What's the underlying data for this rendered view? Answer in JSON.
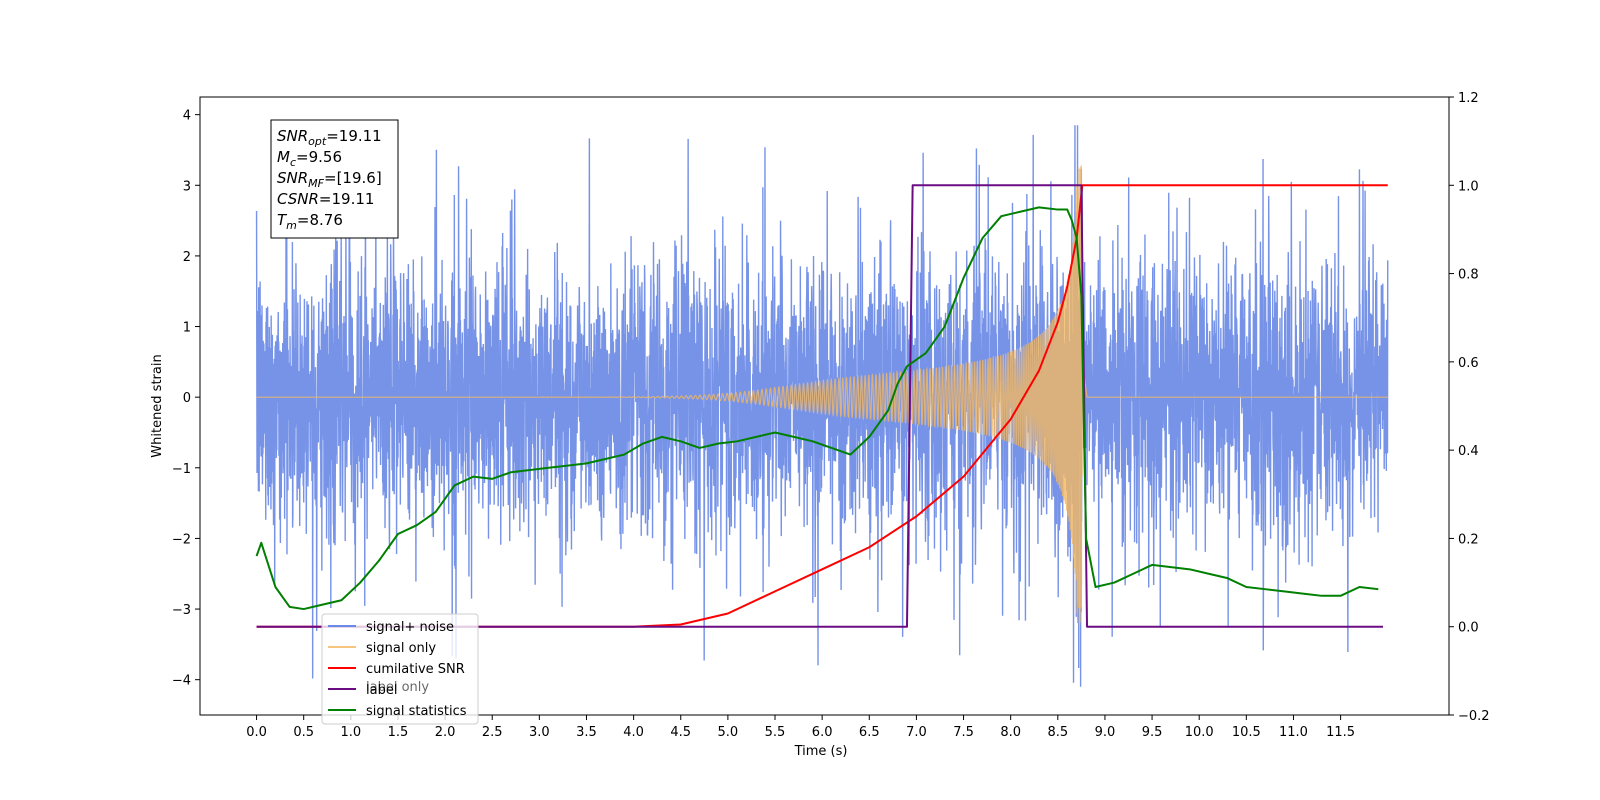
{
  "chart_data": {
    "type": "line",
    "xlabel": "Time (s)",
    "ylabel_left": "Whitened strain",
    "ylabel_right": "",
    "xlim": [
      -0.6,
      12.65
    ],
    "ylim_left": [
      -4.5,
      4.25
    ],
    "ylim_right": [
      -0.2,
      1.2
    ],
    "x_ticks": [
      "0.0",
      "0.5",
      "1.0",
      "1.5",
      "2.0",
      "2.5",
      "3.0",
      "3.5",
      "4.0",
      "4.5",
      "5.0",
      "5.5",
      "6.0",
      "6.5",
      "7.0",
      "7.5",
      "8.0",
      "8.5",
      "9.0",
      "9.5",
      "10.0",
      "10.5",
      "11.0",
      "11.5"
    ],
    "y_ticks_left": [
      "4",
      "3",
      "2",
      "1",
      "0",
      "−1",
      "−2",
      "−3",
      "−4"
    ],
    "y_ticks_right": [
      "1.2",
      "1.0",
      "0.8",
      "0.6",
      "0.4",
      "0.2",
      "0.0",
      "−0.2"
    ],
    "grid": false,
    "legend_position": "lower-left",
    "annotation_box": {
      "lines": [
        {
          "sym": "SNR",
          "sub": "opt",
          "val": "=19.11"
        },
        {
          "sym": "M",
          "sub": "c",
          "val": "=9.56"
        },
        {
          "sym": "SNR",
          "sub": "MF",
          "val": "=[19.6]"
        },
        {
          "sym": "CSNR",
          "sub": "",
          "val": "=19.11"
        },
        {
          "sym": "T",
          "sub": "m",
          "val": "=8.76"
        }
      ]
    },
    "series": [
      {
        "name": "signal+ noise",
        "axis": "left",
        "color": "#6a8ae6",
        "style": "noise",
        "x_start": 0.0,
        "x_end": 12.0,
        "sigma": 1.0,
        "spike_max": 3.85,
        "spike_min": -4.1
      },
      {
        "name": "signal only",
        "axis": "left",
        "color": "#f4b860",
        "style": "chirp",
        "merger_time": 8.76,
        "start_time": 6.0,
        "peak_amplitude": 3.3
      },
      {
        "name": "cumilative SNR",
        "axis": "right",
        "color": "#ff0000",
        "x": [
          0.0,
          4.0,
          4.5,
          5.0,
          5.5,
          6.0,
          6.5,
          7.0,
          7.5,
          8.0,
          8.3,
          8.5,
          8.6,
          8.7,
          8.76,
          12.0
        ],
        "y": [
          0.0,
          0.0,
          0.005,
          0.03,
          0.08,
          0.13,
          0.18,
          0.25,
          0.34,
          0.47,
          0.58,
          0.69,
          0.77,
          0.88,
          1.0,
          1.0
        ]
      },
      {
        "name": "label",
        "axis": "right",
        "color": "#6a0d83",
        "x": [
          0.0,
          6.9,
          6.96,
          8.75,
          8.81,
          11.95
        ],
        "y": [
          0.0,
          0.0,
          1.0,
          1.0,
          0.0,
          0.0
        ]
      },
      {
        "name": "signal statistics",
        "axis": "right",
        "color": "#008000",
        "x": [
          0.0,
          0.05,
          0.2,
          0.35,
          0.5,
          0.7,
          0.9,
          1.1,
          1.3,
          1.5,
          1.7,
          1.9,
          2.1,
          2.3,
          2.5,
          2.7,
          2.9,
          3.1,
          3.3,
          3.5,
          3.7,
          3.9,
          4.1,
          4.3,
          4.5,
          4.7,
          4.9,
          5.1,
          5.3,
          5.5,
          5.7,
          5.9,
          6.1,
          6.3,
          6.5,
          6.7,
          6.8,
          6.9,
          7.1,
          7.3,
          7.5,
          7.7,
          7.9,
          8.1,
          8.3,
          8.5,
          8.6,
          8.65,
          8.7,
          8.75,
          8.8,
          8.9,
          9.1,
          9.3,
          9.5,
          9.7,
          9.9,
          10.1,
          10.3,
          10.5,
          10.7,
          10.9,
          11.1,
          11.3,
          11.5,
          11.7,
          11.9
        ],
        "y": [
          0.16,
          0.19,
          0.09,
          0.045,
          0.04,
          0.05,
          0.06,
          0.1,
          0.15,
          0.21,
          0.23,
          0.26,
          0.32,
          0.34,
          0.335,
          0.35,
          0.355,
          0.36,
          0.365,
          0.37,
          0.38,
          0.39,
          0.415,
          0.43,
          0.42,
          0.405,
          0.415,
          0.42,
          0.43,
          0.44,
          0.43,
          0.42,
          0.405,
          0.39,
          0.43,
          0.49,
          0.55,
          0.59,
          0.62,
          0.68,
          0.79,
          0.88,
          0.93,
          0.94,
          0.95,
          0.945,
          0.945,
          0.92,
          0.88,
          0.75,
          0.2,
          0.09,
          0.1,
          0.12,
          0.14,
          0.135,
          0.13,
          0.12,
          0.11,
          0.09,
          0.085,
          0.08,
          0.075,
          0.07,
          0.07,
          0.09,
          0.085
        ]
      }
    ]
  }
}
